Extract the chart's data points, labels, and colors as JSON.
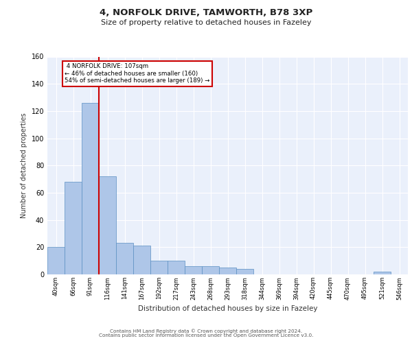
{
  "title1": "4, NORFOLK DRIVE, TAMWORTH, B78 3XP",
  "title2": "Size of property relative to detached houses in Fazeley",
  "xlabel": "Distribution of detached houses by size in Fazeley",
  "ylabel": "Number of detached properties",
  "bar_labels": [
    "40sqm",
    "66sqm",
    "91sqm",
    "116sqm",
    "141sqm",
    "167sqm",
    "192sqm",
    "217sqm",
    "243sqm",
    "268sqm",
    "293sqm",
    "318sqm",
    "344sqm",
    "369sqm",
    "394sqm",
    "420sqm",
    "445sqm",
    "470sqm",
    "495sqm",
    "521sqm",
    "546sqm"
  ],
  "bar_values": [
    20,
    68,
    126,
    72,
    23,
    21,
    10,
    10,
    6,
    6,
    5,
    4,
    0,
    0,
    0,
    0,
    0,
    0,
    0,
    2,
    0
  ],
  "bar_color": "#aec6e8",
  "bar_edge_color": "#5a8fc2",
  "background_color": "#eaf0fb",
  "grid_color": "#ffffff",
  "property_label": "4 NORFOLK DRIVE: 107sqm",
  "pct_smaller": 46,
  "n_smaller": 160,
  "pct_larger": 54,
  "n_larger": 189,
  "red_line_color": "#cc0000",
  "annotation_box_color": "#ffffff",
  "annotation_box_edge": "#cc0000",
  "ylim": [
    0,
    160
  ],
  "yticks": [
    0,
    20,
    40,
    60,
    80,
    100,
    120,
    140,
    160
  ],
  "footer1": "Contains HM Land Registry data © Crown copyright and database right 2024.",
  "footer2": "Contains public sector information licensed under the Open Government Licence v3.0."
}
